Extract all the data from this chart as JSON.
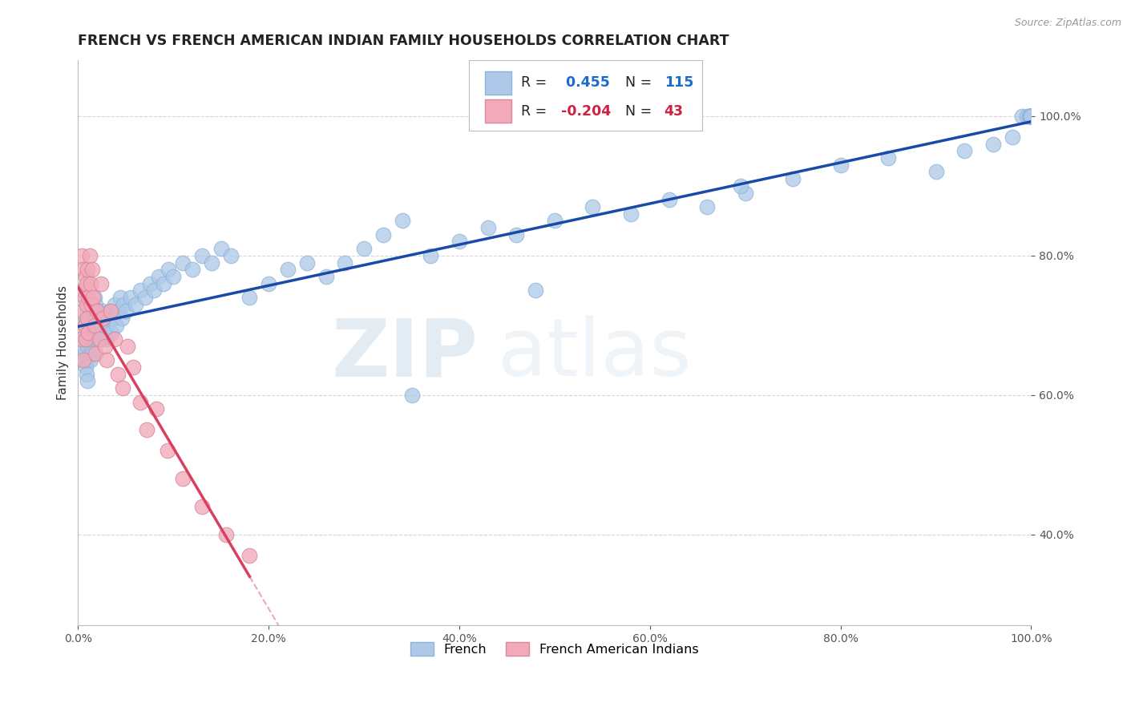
{
  "title": "FRENCH VS FRENCH AMERICAN INDIAN FAMILY HOUSEHOLDS CORRELATION CHART",
  "source": "Source: ZipAtlas.com",
  "ylabel": "Family Households",
  "legend_labels": [
    "French",
    "French American Indians"
  ],
  "R_french": 0.455,
  "N_french": 115,
  "R_indian": -0.204,
  "N_indian": 43,
  "blue_color": "#adc8e8",
  "pink_color": "#f2aabb",
  "blue_line_color": "#1a4aa8",
  "pink_line_color": "#d94060",
  "watermark_zip": "ZIP",
  "watermark_atlas": "atlas",
  "background_color": "#ffffff",
  "xlim": [
    0.0,
    1.0
  ],
  "ylim": [
    0.27,
    1.08
  ],
  "xticks": [
    0.0,
    0.2,
    0.4,
    0.6,
    0.8,
    1.0
  ],
  "yticks": [
    0.4,
    0.6,
    0.8,
    1.0
  ],
  "french_x": [
    0.005,
    0.005,
    0.005,
    0.007,
    0.007,
    0.008,
    0.008,
    0.009,
    0.009,
    0.01,
    0.01,
    0.01,
    0.01,
    0.011,
    0.011,
    0.012,
    0.012,
    0.013,
    0.013,
    0.013,
    0.014,
    0.014,
    0.015,
    0.015,
    0.015,
    0.016,
    0.016,
    0.017,
    0.017,
    0.018,
    0.018,
    0.019,
    0.02,
    0.02,
    0.021,
    0.022,
    0.023,
    0.024,
    0.025,
    0.026,
    0.027,
    0.028,
    0.03,
    0.031,
    0.033,
    0.035,
    0.037,
    0.038,
    0.04,
    0.042,
    0.044,
    0.046,
    0.048,
    0.05,
    0.055,
    0.06,
    0.065,
    0.07,
    0.075,
    0.08,
    0.085,
    0.09,
    0.095,
    0.1,
    0.11,
    0.12,
    0.13,
    0.14,
    0.15,
    0.16,
    0.18,
    0.2,
    0.22,
    0.24,
    0.26,
    0.28,
    0.3,
    0.32,
    0.34,
    0.37,
    0.4,
    0.43,
    0.46,
    0.5,
    0.54,
    0.58,
    0.62,
    0.66,
    0.7,
    0.75,
    0.8,
    0.85,
    0.9,
    0.93,
    0.96,
    0.98,
    0.99,
    0.995,
    0.998,
    0.999,
    0.999,
    1.0,
    1.0,
    1.0,
    1.0,
    1.0,
    1.0,
    1.0,
    1.0,
    1.0,
    1.0,
    0.695,
    0.48,
    0.35
  ],
  "french_y": [
    0.67,
    0.68,
    0.65,
    0.7,
    0.66,
    0.71,
    0.64,
    0.69,
    0.63,
    0.72,
    0.67,
    0.65,
    0.62,
    0.73,
    0.68,
    0.7,
    0.66,
    0.72,
    0.68,
    0.65,
    0.71,
    0.67,
    0.73,
    0.7,
    0.66,
    0.72,
    0.68,
    0.74,
    0.7,
    0.73,
    0.69,
    0.71,
    0.68,
    0.72,
    0.7,
    0.69,
    0.71,
    0.68,
    0.7,
    0.72,
    0.69,
    0.71,
    0.68,
    0.7,
    0.72,
    0.69,
    0.71,
    0.73,
    0.7,
    0.72,
    0.74,
    0.71,
    0.73,
    0.72,
    0.74,
    0.73,
    0.75,
    0.74,
    0.76,
    0.75,
    0.77,
    0.76,
    0.78,
    0.77,
    0.79,
    0.78,
    0.8,
    0.79,
    0.81,
    0.8,
    0.74,
    0.76,
    0.78,
    0.79,
    0.77,
    0.79,
    0.81,
    0.83,
    0.85,
    0.8,
    0.82,
    0.84,
    0.83,
    0.85,
    0.87,
    0.86,
    0.88,
    0.87,
    0.89,
    0.91,
    0.93,
    0.94,
    0.92,
    0.95,
    0.96,
    0.97,
    1.0,
    1.0,
    1.0,
    1.0,
    1.0,
    1.0,
    1.0,
    1.0,
    1.0,
    1.0,
    1.0,
    1.0,
    1.0,
    1.0,
    1.0,
    0.9,
    0.75,
    0.6
  ],
  "indian_x": [
    0.003,
    0.004,
    0.005,
    0.005,
    0.006,
    0.006,
    0.007,
    0.007,
    0.008,
    0.008,
    0.009,
    0.009,
    0.01,
    0.01,
    0.011,
    0.011,
    0.012,
    0.013,
    0.014,
    0.015,
    0.016,
    0.017,
    0.018,
    0.02,
    0.022,
    0.024,
    0.026,
    0.028,
    0.03,
    0.034,
    0.038,
    0.042,
    0.047,
    0.052,
    0.058,
    0.065,
    0.072,
    0.082,
    0.094,
    0.11,
    0.13,
    0.155,
    0.18
  ],
  "indian_y": [
    0.68,
    0.8,
    0.72,
    0.75,
    0.78,
    0.65,
    0.7,
    0.74,
    0.77,
    0.68,
    0.73,
    0.76,
    0.71,
    0.78,
    0.74,
    0.69,
    0.8,
    0.76,
    0.73,
    0.78,
    0.74,
    0.7,
    0.66,
    0.72,
    0.68,
    0.76,
    0.71,
    0.67,
    0.65,
    0.72,
    0.68,
    0.63,
    0.61,
    0.67,
    0.64,
    0.59,
    0.55,
    0.58,
    0.52,
    0.48,
    0.44,
    0.4,
    0.37
  ]
}
